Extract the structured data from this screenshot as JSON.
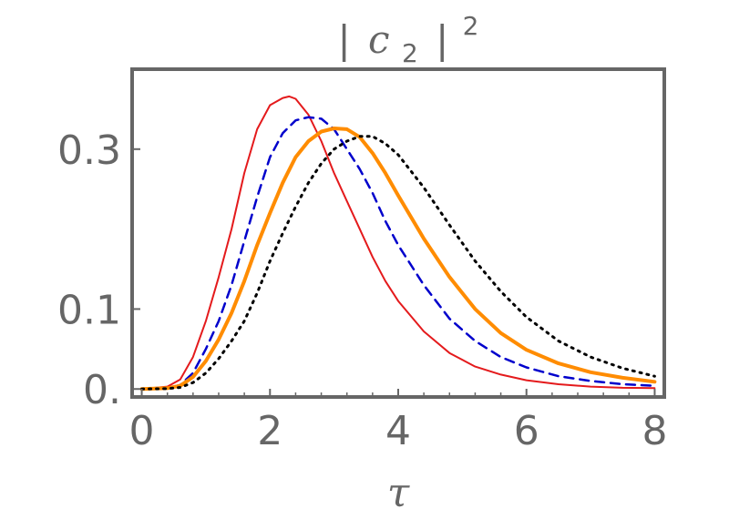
{
  "chart_data": {
    "type": "line",
    "title_parts": {
      "bar_left": "|",
      "var": "c",
      "sub": "2",
      "bar_right": "|",
      "sup": "2"
    },
    "xlabel": "τ",
    "ylabel": "",
    "xlim": [
      -0.15,
      8.15
    ],
    "ylim": [
      -0.01,
      0.4
    ],
    "x_ticks": [
      {
        "value": 0,
        "label": "0"
      },
      {
        "value": 2,
        "label": "2"
      },
      {
        "value": 4,
        "label": "4"
      },
      {
        "value": 6,
        "label": "6"
      },
      {
        "value": 8,
        "label": "8"
      }
    ],
    "x_minor_step": 0.4,
    "y_ticks": [
      {
        "value": 0.0,
        "label": "0."
      },
      {
        "value": 0.1,
        "label": "0.1"
      },
      {
        "value": 0.3,
        "label": "0.3"
      }
    ],
    "grid": false,
    "frame_color": "#666666",
    "series": [
      {
        "color": "#e41a1c",
        "style": "solid",
        "width": 2,
        "points": [
          [
            0,
            0.0
          ],
          [
            0.4,
            0.003
          ],
          [
            0.6,
            0.012
          ],
          [
            0.8,
            0.04
          ],
          [
            1.0,
            0.085
          ],
          [
            1.2,
            0.14
          ],
          [
            1.4,
            0.2
          ],
          [
            1.6,
            0.27
          ],
          [
            1.8,
            0.325
          ],
          [
            2.0,
            0.355
          ],
          [
            2.2,
            0.364
          ],
          [
            2.3,
            0.366
          ],
          [
            2.4,
            0.363
          ],
          [
            2.6,
            0.343
          ],
          [
            2.8,
            0.31
          ],
          [
            3.0,
            0.27
          ],
          [
            3.2,
            0.235
          ],
          [
            3.4,
            0.2
          ],
          [
            3.6,
            0.165
          ],
          [
            3.8,
            0.135
          ],
          [
            4.0,
            0.11
          ],
          [
            4.4,
            0.072
          ],
          [
            4.8,
            0.045
          ],
          [
            5.2,
            0.028
          ],
          [
            5.6,
            0.018
          ],
          [
            6.0,
            0.011
          ],
          [
            6.5,
            0.006
          ],
          [
            7.0,
            0.003
          ],
          [
            7.5,
            0.0015
          ],
          [
            8.0,
            0.001
          ]
        ]
      },
      {
        "color": "#0000cc",
        "style": "dashed",
        "width": 2.5,
        "points": [
          [
            0,
            0.0
          ],
          [
            0.4,
            0.001
          ],
          [
            0.6,
            0.005
          ],
          [
            0.8,
            0.02
          ],
          [
            1.0,
            0.05
          ],
          [
            1.2,
            0.085
          ],
          [
            1.4,
            0.13
          ],
          [
            1.6,
            0.185
          ],
          [
            1.8,
            0.24
          ],
          [
            2.0,
            0.29
          ],
          [
            2.2,
            0.32
          ],
          [
            2.4,
            0.336
          ],
          [
            2.6,
            0.34
          ],
          [
            2.8,
            0.338
          ],
          [
            3.0,
            0.325
          ],
          [
            3.2,
            0.3
          ],
          [
            3.4,
            0.275
          ],
          [
            3.6,
            0.245
          ],
          [
            3.8,
            0.21
          ],
          [
            4.0,
            0.18
          ],
          [
            4.4,
            0.13
          ],
          [
            4.8,
            0.088
          ],
          [
            5.2,
            0.06
          ],
          [
            5.6,
            0.04
          ],
          [
            6.0,
            0.027
          ],
          [
            6.5,
            0.016
          ],
          [
            7.0,
            0.01
          ],
          [
            7.5,
            0.006
          ],
          [
            8.0,
            0.004
          ]
        ]
      },
      {
        "color": "#ff8c00",
        "style": "solid",
        "width": 4,
        "points": [
          [
            0,
            0.0
          ],
          [
            0.4,
            0.001
          ],
          [
            0.6,
            0.004
          ],
          [
            0.8,
            0.015
          ],
          [
            1.0,
            0.035
          ],
          [
            1.2,
            0.062
          ],
          [
            1.4,
            0.095
          ],
          [
            1.6,
            0.135
          ],
          [
            1.8,
            0.18
          ],
          [
            2.0,
            0.22
          ],
          [
            2.2,
            0.258
          ],
          [
            2.4,
            0.29
          ],
          [
            2.6,
            0.31
          ],
          [
            2.8,
            0.322
          ],
          [
            3.0,
            0.326
          ],
          [
            3.2,
            0.325
          ],
          [
            3.4,
            0.315
          ],
          [
            3.6,
            0.295
          ],
          [
            3.8,
            0.27
          ],
          [
            4.0,
            0.242
          ],
          [
            4.4,
            0.188
          ],
          [
            4.8,
            0.14
          ],
          [
            5.2,
            0.1
          ],
          [
            5.6,
            0.07
          ],
          [
            6.0,
            0.049
          ],
          [
            6.5,
            0.032
          ],
          [
            7.0,
            0.021
          ],
          [
            7.5,
            0.014
          ],
          [
            8.0,
            0.009
          ]
        ]
      },
      {
        "color": "#000000",
        "style": "dotted",
        "width": 3,
        "points": [
          [
            0,
            0.0
          ],
          [
            0.4,
            0.0005
          ],
          [
            0.6,
            0.002
          ],
          [
            0.8,
            0.008
          ],
          [
            1.0,
            0.02
          ],
          [
            1.2,
            0.038
          ],
          [
            1.4,
            0.06
          ],
          [
            1.6,
            0.085
          ],
          [
            1.8,
            0.12
          ],
          [
            2.0,
            0.16
          ],
          [
            2.2,
            0.195
          ],
          [
            2.4,
            0.228
          ],
          [
            2.6,
            0.258
          ],
          [
            2.8,
            0.282
          ],
          [
            3.0,
            0.3
          ],
          [
            3.2,
            0.31
          ],
          [
            3.4,
            0.316
          ],
          [
            3.6,
            0.316
          ],
          [
            3.8,
            0.307
          ],
          [
            4.0,
            0.293
          ],
          [
            4.4,
            0.252
          ],
          [
            4.8,
            0.205
          ],
          [
            5.2,
            0.16
          ],
          [
            5.6,
            0.122
          ],
          [
            6.0,
            0.09
          ],
          [
            6.5,
            0.06
          ],
          [
            7.0,
            0.04
          ],
          [
            7.5,
            0.026
          ],
          [
            8.0,
            0.016
          ]
        ]
      }
    ]
  }
}
